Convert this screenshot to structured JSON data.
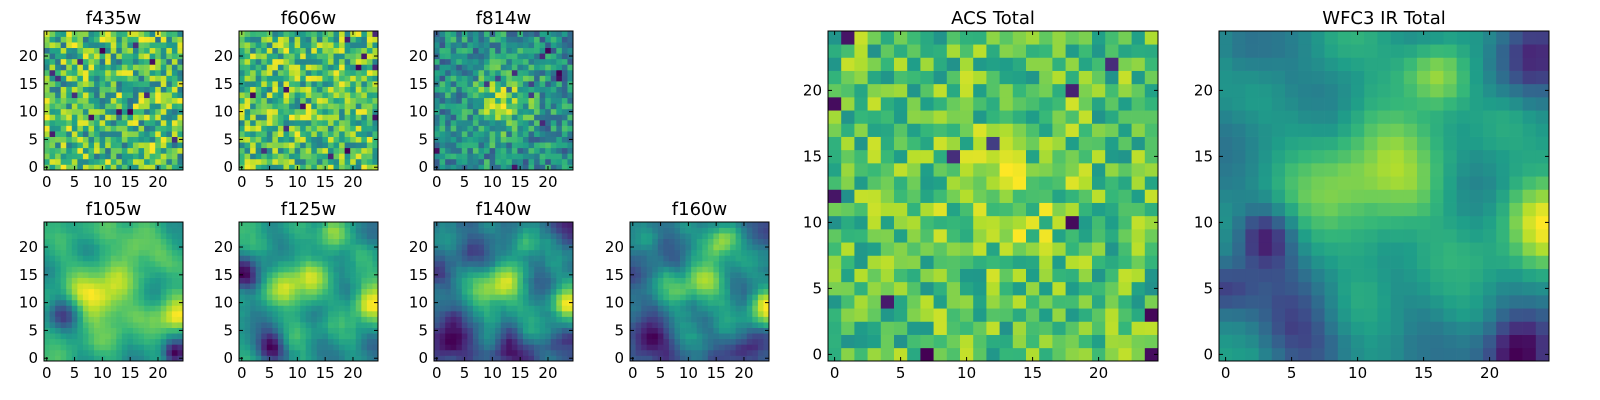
{
  "chart_data": [
    {
      "type": "heatmap",
      "title": "f435w",
      "xticks": [
        "0",
        "5",
        "10",
        "15",
        "20"
      ],
      "yticks": [
        "0",
        "5",
        "10",
        "15",
        "20"
      ],
      "xlim": [
        -0.5,
        24.5
      ],
      "ylim": [
        -0.5,
        24.5
      ],
      "grid_size": 25,
      "colormap": "viridis",
      "pattern": "uniform-noise",
      "mean": 0.62,
      "noise": 0.28,
      "peaks": [],
      "holes": []
    },
    {
      "type": "heatmap",
      "title": "f606w",
      "xticks": [
        "0",
        "5",
        "10",
        "15",
        "20"
      ],
      "yticks": [
        "0",
        "5",
        "10",
        "15",
        "20"
      ],
      "xlim": [
        -0.5,
        24.5
      ],
      "ylim": [
        -0.5,
        24.5
      ],
      "grid_size": 25,
      "colormap": "viridis",
      "pattern": "uniform-noise",
      "mean": 0.7,
      "noise": 0.28,
      "peaks": [],
      "holes": []
    },
    {
      "type": "heatmap",
      "title": "f814w",
      "xticks": [
        "0",
        "5",
        "10",
        "15",
        "20"
      ],
      "yticks": [
        "0",
        "5",
        "10",
        "15",
        "20"
      ],
      "xlim": [
        -0.5,
        24.5
      ],
      "ylim": [
        -0.5,
        24.5
      ],
      "grid_size": 25,
      "colormap": "viridis",
      "pattern": "noise-with-central-source",
      "mean": 0.58,
      "noise": 0.26,
      "peaks": [
        {
          "x": 12,
          "y": 12,
          "amp": 0.35,
          "r": 4
        }
      ],
      "holes": []
    },
    {
      "type": "heatmap",
      "title": "f105w",
      "xticks": [
        "0",
        "5",
        "10",
        "15",
        "20"
      ],
      "yticks": [
        "0",
        "5",
        "10",
        "15",
        "20"
      ],
      "xlim": [
        -0.5,
        24.5
      ],
      "ylim": [
        -0.5,
        24.5
      ],
      "grid_size": 25,
      "colormap": "viridis",
      "pattern": "smooth",
      "mean": 0.52,
      "noise": 0.08,
      "peaks": [
        {
          "x": 10,
          "y": 11,
          "amp": 0.35,
          "r": 4
        },
        {
          "x": 23,
          "y": 8,
          "amp": 0.35,
          "r": 2.5
        },
        {
          "x": 16,
          "y": 21,
          "amp": 0.25,
          "r": 2.5
        }
      ],
      "holes": [
        {
          "x": 3,
          "y": 8,
          "amp": 0.35,
          "r": 2
        },
        {
          "x": 23,
          "y": 1,
          "amp": 0.45,
          "r": 1.5
        }
      ]
    },
    {
      "type": "heatmap",
      "title": "f125w",
      "xticks": [
        "0",
        "5",
        "10",
        "15",
        "20"
      ],
      "yticks": [
        "0",
        "5",
        "10",
        "15",
        "20"
      ],
      "xlim": [
        -0.5,
        24.5
      ],
      "ylim": [
        -0.5,
        24.5
      ],
      "grid_size": 25,
      "colormap": "viridis",
      "pattern": "smooth",
      "mean": 0.48,
      "noise": 0.1,
      "peaks": [
        {
          "x": 10,
          "y": 13,
          "amp": 0.3,
          "r": 3.5
        },
        {
          "x": 16,
          "y": 22,
          "amp": 0.35,
          "r": 2
        },
        {
          "x": 23,
          "y": 10,
          "amp": 0.35,
          "r": 2.5
        }
      ],
      "holes": [
        {
          "x": 5,
          "y": 2,
          "amp": 0.4,
          "r": 2
        },
        {
          "x": 1,
          "y": 15,
          "amp": 0.25,
          "r": 2
        }
      ]
    },
    {
      "type": "heatmap",
      "title": "f140w",
      "xticks": [
        "0",
        "5",
        "10",
        "15",
        "20"
      ],
      "yticks": [
        "0",
        "5",
        "10",
        "15",
        "20"
      ],
      "xlim": [
        -0.5,
        24.5
      ],
      "ylim": [
        -0.5,
        24.5
      ],
      "grid_size": 25,
      "colormap": "viridis",
      "pattern": "smooth",
      "mean": 0.46,
      "noise": 0.1,
      "peaks": [
        {
          "x": 11,
          "y": 12,
          "amp": 0.35,
          "r": 3.5
        },
        {
          "x": 23,
          "y": 10,
          "amp": 0.35,
          "r": 2.5
        },
        {
          "x": 16,
          "y": 21,
          "amp": 0.3,
          "r": 2
        }
      ],
      "holes": [
        {
          "x": 2,
          "y": 2,
          "amp": 0.3,
          "r": 2.5
        },
        {
          "x": 12,
          "y": 2,
          "amp": 0.2,
          "r": 2
        }
      ]
    },
    {
      "type": "heatmap",
      "title": "f160w",
      "xticks": [
        "0",
        "5",
        "10",
        "15",
        "20"
      ],
      "yticks": [
        "0",
        "5",
        "10",
        "15",
        "20"
      ],
      "xlim": [
        -0.5,
        24.5
      ],
      "ylim": [
        -0.5,
        24.5
      ],
      "grid_size": 25,
      "colormap": "viridis",
      "pattern": "smooth",
      "mean": 0.42,
      "noise": 0.1,
      "peaks": [
        {
          "x": 16,
          "y": 21,
          "amp": 0.45,
          "r": 2
        },
        {
          "x": 12,
          "y": 13,
          "amp": 0.3,
          "r": 4
        },
        {
          "x": 24,
          "y": 9,
          "amp": 0.4,
          "r": 2.5
        }
      ],
      "holes": [
        {
          "x": 3,
          "y": 2,
          "amp": 0.3,
          "r": 3
        },
        {
          "x": 20,
          "y": 2,
          "amp": 0.2,
          "r": 2
        }
      ]
    },
    {
      "type": "heatmap",
      "title": "ACS Total",
      "xticks": [
        "0",
        "5",
        "10",
        "15",
        "20"
      ],
      "yticks": [
        "0",
        "5",
        "10",
        "15",
        "20"
      ],
      "xlim": [
        -0.5,
        24.5
      ],
      "ylim": [
        -0.5,
        24.5
      ],
      "grid_size": 25,
      "colormap": "viridis",
      "pattern": "uniform-noise",
      "mean": 0.7,
      "noise": 0.2,
      "peaks": [
        {
          "x": 13,
          "y": 12,
          "amp": 0.1,
          "r": 4
        }
      ],
      "holes": []
    },
    {
      "type": "heatmap",
      "title": "WFC3 IR Total",
      "xticks": [
        "0",
        "5",
        "10",
        "15",
        "20"
      ],
      "yticks": [
        "0",
        "5",
        "10",
        "15",
        "20"
      ],
      "xlim": [
        -0.5,
        24.5
      ],
      "ylim": [
        -0.5,
        24.5
      ],
      "grid_size": 25,
      "colormap": "viridis",
      "pattern": "smooth",
      "mean": 0.45,
      "noise": 0.06,
      "peaks": [
        {
          "x": 16,
          "y": 21,
          "amp": 0.45,
          "r": 1.8
        },
        {
          "x": 11,
          "y": 13,
          "amp": 0.35,
          "r": 4
        },
        {
          "x": 24,
          "y": 10,
          "amp": 0.45,
          "r": 2.5
        }
      ],
      "holes": [
        {
          "x": 3,
          "y": 9,
          "amp": 0.35,
          "r": 1.5
        },
        {
          "x": 0,
          "y": 5,
          "amp": 0.3,
          "r": 1.5
        },
        {
          "x": 5,
          "y": 2,
          "amp": 0.3,
          "r": 2.5
        },
        {
          "x": 22,
          "y": 0,
          "amp": 0.45,
          "r": 2
        },
        {
          "x": 23,
          "y": 22,
          "amp": 0.3,
          "r": 2
        },
        {
          "x": 2,
          "y": 23,
          "amp": 0.2,
          "r": 2
        }
      ]
    }
  ]
}
